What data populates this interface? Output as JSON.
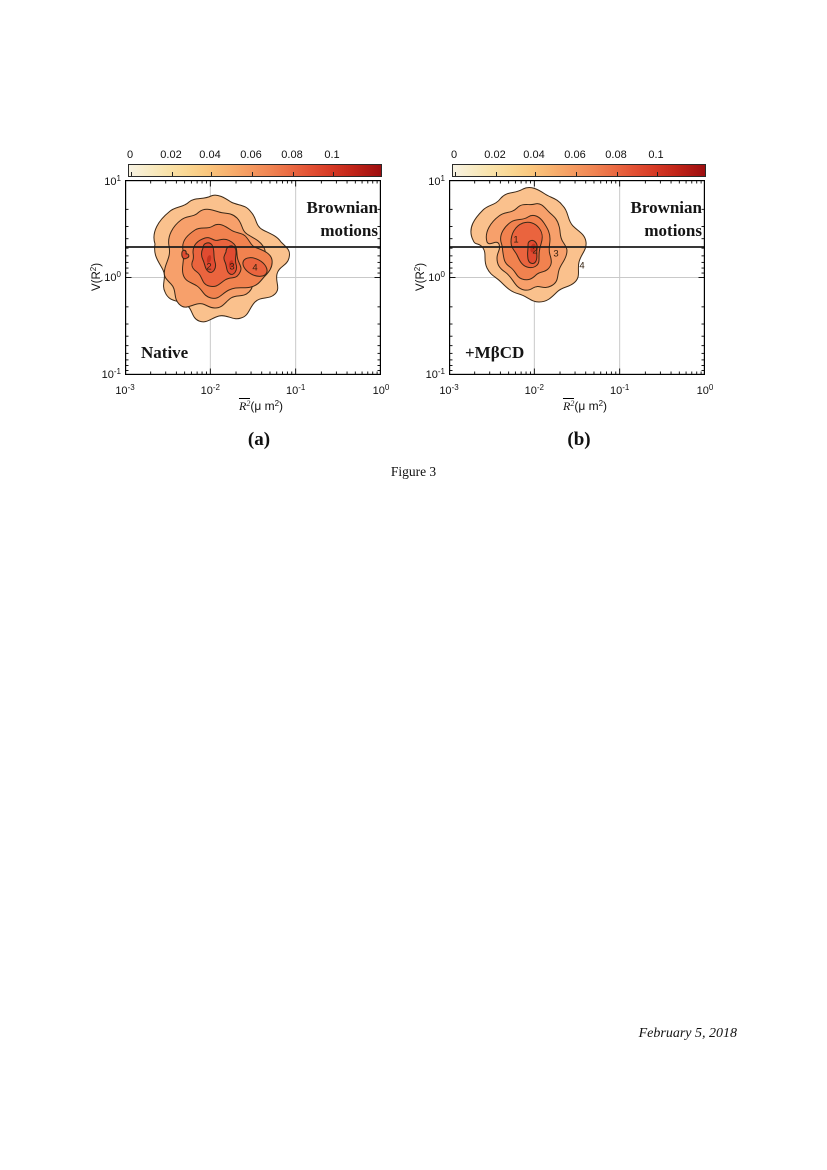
{
  "page": {
    "figure_caption": "Figure 3",
    "date": "February 5, 2018"
  },
  "figure": {
    "contour_fills": [
      "#FAC18D",
      "#F7A06B",
      "#F1824F",
      "#EA643E",
      "#E04B31",
      "#C5331F"
    ],
    "contour_line_color": "#3A2817",
    "threshold_line_color": "#1C1C1C",
    "colorbar": {
      "tick_labels": [
        "0",
        "0.02",
        "0.04",
        "0.06",
        "0.08",
        "0.1"
      ]
    },
    "axes": {
      "tick_base": "10",
      "x_tick_exponents": [
        "-3",
        "-2",
        "-1",
        "0"
      ],
      "y_tick_exponents": [
        "1",
        "0",
        "-1"
      ],
      "x_label": {
        "var_base": "R",
        "var_sup": "2",
        "unit_open": "(μ m",
        "unit_sup": "2",
        "unit_close": ")"
      },
      "y_label": {
        "open": "V(R",
        "sup": "2",
        "close": ")"
      }
    },
    "panels": [
      {
        "letter": "(a)",
        "condition": "Native",
        "annotation_line1": "Brownian",
        "annotation_line2": "motions",
        "contour_labels": [
          "2",
          "3",
          "4"
        ]
      },
      {
        "letter": "(b)",
        "condition": "+MβCD",
        "annotation_line1": "Brownian",
        "annotation_line2": "motions",
        "contour_labels": [
          "1",
          "2",
          "3",
          "4"
        ]
      }
    ]
  },
  "chart_data": [
    {
      "type": "heatmap",
      "subtype": "2d-density-contour",
      "panel": "(a)",
      "title": "Native",
      "xlabel": "R̅² (μ m²)",
      "ylabel": "V(R²)",
      "x_scale": "log",
      "y_scale": "log",
      "xlim": [
        0.001,
        1.0
      ],
      "ylim": [
        0.1,
        10
      ],
      "grid": true,
      "colorbar": {
        "orientation": "horizontal",
        "position": "top",
        "ticks": [
          0,
          0.02,
          0.04,
          0.06,
          0.08,
          0.1
        ],
        "range": [
          0,
          0.12
        ],
        "colors": [
          "#F7F2E3",
          "#9D0E10"
        ]
      },
      "threshold_line": {
        "y": 2,
        "label": "Brownian motions"
      },
      "contour_level_labels": [
        2,
        3,
        4
      ],
      "density_peaks": [
        {
          "x": 0.005,
          "y": 1.6
        },
        {
          "x": 0.009,
          "y": 1.3
        },
        {
          "x": 0.017,
          "y": 1.3
        },
        {
          "x": 0.031,
          "y": 1.25
        }
      ],
      "density_extent": {
        "x": [
          0.002,
          0.085
        ],
        "y": [
          0.36,
          6.7
        ]
      }
    },
    {
      "type": "heatmap",
      "subtype": "2d-density-contour",
      "panel": "(b)",
      "title": "+MβCD",
      "xlabel": "R̅² (μ m²)",
      "ylabel": "V(R²)",
      "x_scale": "log",
      "y_scale": "log",
      "xlim": [
        0.001,
        1.0
      ],
      "ylim": [
        0.1,
        10
      ],
      "grid": true,
      "colorbar": {
        "orientation": "horizontal",
        "position": "top",
        "ticks": [
          0,
          0.02,
          0.04,
          0.06,
          0.08,
          0.1
        ],
        "range": [
          0,
          0.12
        ],
        "colors": [
          "#F7F2E3",
          "#9D0E10"
        ]
      },
      "threshold_line": {
        "y": 2,
        "label": "Brownian motions"
      },
      "contour_level_labels": [
        1,
        2,
        3,
        4
      ],
      "density_peaks": [
        {
          "x": 0.0084,
          "y": 2.2
        }
      ],
      "density_extent": {
        "x": [
          0.0017,
          0.045
        ],
        "y": [
          0.53,
          8.9
        ]
      }
    }
  ]
}
